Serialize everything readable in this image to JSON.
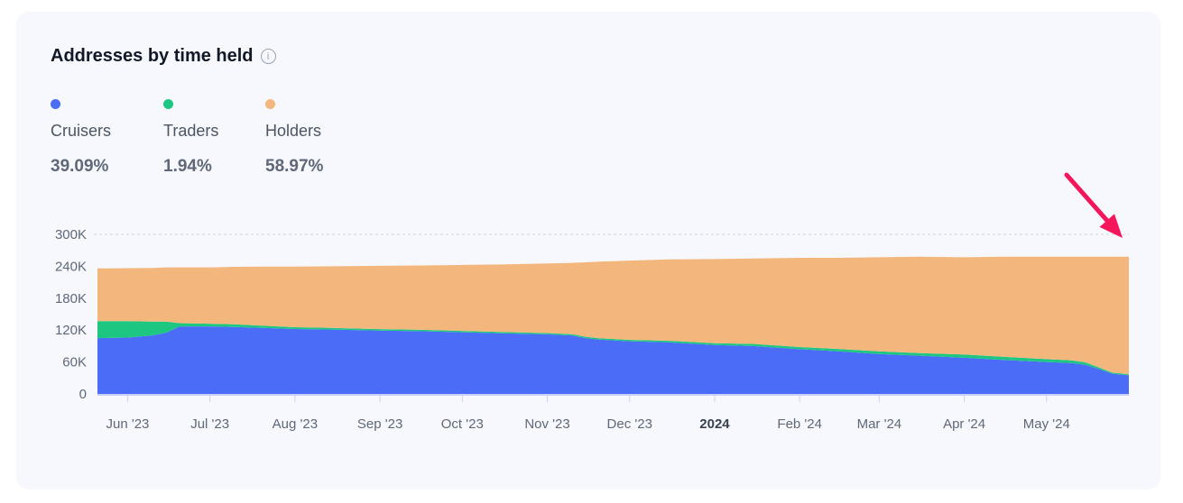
{
  "header": {
    "title": "Addresses by time held",
    "info_icon": "info-icon"
  },
  "legend": [
    {
      "label": "Cruisers",
      "value": "39.09%",
      "color": "#4a6cf7"
    },
    {
      "label": "Traders",
      "value": "1.94%",
      "color": "#1ec781"
    },
    {
      "label": "Holders",
      "value": "58.97%",
      "color": "#f3b77e"
    }
  ],
  "chart_data": {
    "type": "area",
    "stacked": true,
    "title": "Addresses by time held",
    "x": [
      "2023-05-21",
      "2023-06-01",
      "2023-06-10",
      "2023-06-15",
      "2023-06-20",
      "2023-07-01",
      "2023-07-10",
      "2023-07-20",
      "2023-08-01",
      "2023-08-15",
      "2023-09-01",
      "2023-09-15",
      "2023-10-01",
      "2023-10-15",
      "2023-11-01",
      "2023-11-10",
      "2023-11-15",
      "2023-11-20",
      "2023-12-01",
      "2023-12-15",
      "2024-01-01",
      "2024-01-15",
      "2024-02-01",
      "2024-02-15",
      "2024-03-01",
      "2024-03-15",
      "2024-04-01",
      "2024-04-15",
      "2024-05-01",
      "2024-05-10",
      "2024-05-15",
      "2024-05-20",
      "2024-05-25",
      "2024-05-31"
    ],
    "series": [
      {
        "name": "Cruisers",
        "color": "#4a6cf7",
        "values": [
          105000,
          106000,
          110000,
          115000,
          127000,
          127000,
          126000,
          124000,
          122000,
          121000,
          119000,
          118000,
          116000,
          114000,
          112000,
          110000,
          105000,
          102000,
          99000,
          97000,
          92000,
          90000,
          84000,
          80000,
          75000,
          72000,
          68000,
          64000,
          60000,
          58000,
          55000,
          47000,
          38000,
          35000
        ]
      },
      {
        "name": "Traders",
        "color": "#1ec781",
        "values": [
          32000,
          31000,
          26000,
          21000,
          6000,
          5000,
          5000,
          4500,
          3500,
          3000,
          2800,
          2600,
          2500,
          2400,
          2400,
          2400,
          2500,
          2600,
          2700,
          3000,
          3500,
          4000,
          4200,
          4500,
          5000,
          5000,
          6000,
          6000,
          5500,
          5000,
          4500,
          3000,
          2000,
          1700
        ]
      },
      {
        "name": "Holders",
        "color": "#f3b77e",
        "values": [
          99000,
          99500,
          101000,
          102000,
          105000,
          106000,
          108000,
          111000,
          114000,
          116000,
          119000,
          121000,
          124000,
          127000,
          131000,
          134000,
          140000,
          144000,
          149000,
          153000,
          158000,
          160500,
          167800,
          171500,
          177000,
          181000,
          183000,
          188000,
          192500,
          195000,
          198500,
          208000,
          218000,
          221300
        ]
      }
    ],
    "x_ticks": [
      {
        "date": "2023-06-01",
        "label": "Jun '23"
      },
      {
        "date": "2023-07-01",
        "label": "Jul '23"
      },
      {
        "date": "2023-08-01",
        "label": "Aug '23"
      },
      {
        "date": "2023-09-01",
        "label": "Sep '23"
      },
      {
        "date": "2023-10-01",
        "label": "Oct '23"
      },
      {
        "date": "2023-11-01",
        "label": "Nov '23"
      },
      {
        "date": "2023-12-01",
        "label": "Dec '23"
      },
      {
        "date": "2024-01-01",
        "label": "2024",
        "bold": true
      },
      {
        "date": "2024-02-01",
        "label": "Feb '24"
      },
      {
        "date": "2024-03-01",
        "label": "Mar '24"
      },
      {
        "date": "2024-04-01",
        "label": "Apr '24"
      },
      {
        "date": "2024-05-01",
        "label": "May '24"
      }
    ],
    "y_ticks": [
      {
        "value": 0,
        "label": "0"
      },
      {
        "value": 60000,
        "label": "60K"
      },
      {
        "value": 120000,
        "label": "120K"
      },
      {
        "value": 180000,
        "label": "180K"
      },
      {
        "value": 240000,
        "label": "240K"
      },
      {
        "value": 300000,
        "label": "300K"
      }
    ],
    "ylim": [
      0,
      300000
    ],
    "xlim": [
      "2023-05-21",
      "2024-05-31"
    ],
    "grid": "top-line-dashed",
    "annotation": {
      "type": "arrow",
      "color": "#f4155b",
      "points_to": "2024-05-31",
      "value": 300000
    }
  }
}
